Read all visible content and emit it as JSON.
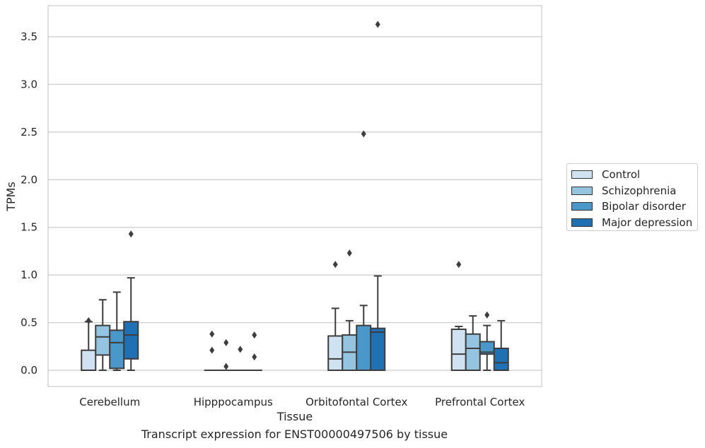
{
  "chart_data": {
    "type": "box",
    "x_label": "Tissue",
    "y_label": "TPMs",
    "caption": "Transcript expression for ENST00000497506 by tissue",
    "y_ticks": [
      "0.0",
      "0.5",
      "1.0",
      "1.5",
      "2.0",
      "2.5",
      "3.0",
      "3.5"
    ],
    "ylim": [
      -0.17,
      3.82
    ],
    "grid": "horizontal",
    "legend_placement": "right",
    "categories": [
      "Cerebellum",
      "Hipppocampus",
      "Orbitofontal Cortex",
      "Prefrontal Cortex"
    ],
    "series": [
      {
        "name": "Control",
        "color": "#d0e1f2",
        "boxes": [
          {
            "min": 0.0,
            "q1": 0.0,
            "median": 0.0,
            "q3": 0.21,
            "max": 0.51,
            "outliers": [
              0.52
            ]
          },
          {
            "min": 0.0,
            "q1": 0.0,
            "median": 0.0,
            "q3": 0.0,
            "max": 0.0,
            "outliers": [
              0.21,
              0.38
            ]
          },
          {
            "min": 0.0,
            "q1": 0.0,
            "median": 0.12,
            "q3": 0.36,
            "max": 0.65,
            "outliers": [
              1.11
            ]
          },
          {
            "min": 0.0,
            "q1": 0.0,
            "median": 0.17,
            "q3": 0.43,
            "max": 0.46,
            "outliers": [
              1.11
            ]
          }
        ]
      },
      {
        "name": "Schizophrenia",
        "color": "#94c4df",
        "boxes": [
          {
            "min": 0.0,
            "q1": 0.16,
            "median": 0.35,
            "q3": 0.47,
            "max": 0.74,
            "outliers": []
          },
          {
            "min": 0.0,
            "q1": 0.0,
            "median": 0.0,
            "q3": 0.0,
            "max": 0.0,
            "outliers": [
              0.04,
              0.29
            ]
          },
          {
            "min": 0.0,
            "q1": 0.0,
            "median": 0.19,
            "q3": 0.37,
            "max": 0.52,
            "outliers": [
              1.23
            ]
          },
          {
            "min": 0.0,
            "q1": 0.0,
            "median": 0.23,
            "q3": 0.38,
            "max": 0.57,
            "outliers": []
          }
        ]
      },
      {
        "name": "Bipolar disorder",
        "color": "#4a98c9",
        "boxes": [
          {
            "min": 0.0,
            "q1": 0.02,
            "median": 0.29,
            "q3": 0.42,
            "max": 0.82,
            "outliers": []
          },
          {
            "min": 0.0,
            "q1": 0.0,
            "median": 0.0,
            "q3": 0.0,
            "max": 0.0,
            "outliers": [
              0.22
            ]
          },
          {
            "min": 0.0,
            "q1": 0.0,
            "median": 0.0,
            "q3": 0.47,
            "max": 0.68,
            "outliers": [
              2.48
            ]
          },
          {
            "min": 0.0,
            "q1": 0.17,
            "median": 0.19,
            "q3": 0.3,
            "max": 0.47,
            "outliers": [
              0.58
            ]
          }
        ]
      },
      {
        "name": "Major depression",
        "color": "#2070b4",
        "boxes": [
          {
            "min": 0.0,
            "q1": 0.12,
            "median": 0.37,
            "q3": 0.51,
            "max": 0.97,
            "outliers": [
              1.43
            ]
          },
          {
            "min": 0.0,
            "q1": 0.0,
            "median": 0.0,
            "q3": 0.0,
            "max": 0.0,
            "outliers": [
              0.14,
              0.37
            ]
          },
          {
            "min": 0.0,
            "q1": 0.0,
            "median": 0.4,
            "q3": 0.44,
            "max": 0.99,
            "outliers": [
              3.63
            ]
          },
          {
            "min": 0.0,
            "q1": 0.0,
            "median": 0.08,
            "q3": 0.23,
            "max": 0.52,
            "outliers": []
          }
        ]
      }
    ]
  }
}
